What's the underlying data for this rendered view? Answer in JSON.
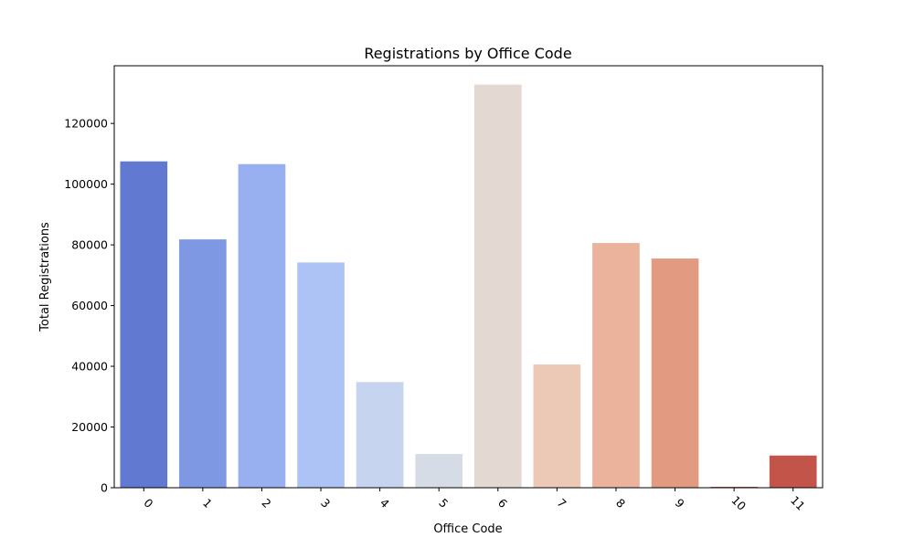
{
  "chart_data": {
    "type": "bar",
    "title": "Registrations by Office Code",
    "xlabel": "Office Code",
    "ylabel": "Total Registrations",
    "categories": [
      "0",
      "1",
      "2",
      "3",
      "4",
      "5",
      "6",
      "7",
      "8",
      "9",
      "10",
      "11"
    ],
    "values": [
      107500,
      81800,
      106600,
      74200,
      34800,
      11100,
      132800,
      40600,
      80600,
      75500,
      300,
      10600
    ],
    "colors": [
      "#6279d1",
      "#7f98e3",
      "#98b0ef",
      "#adc3f5",
      "#c6d4ef",
      "#d6dce5",
      "#e4d8d3",
      "#ecc8b6",
      "#ebb29c",
      "#e29a81",
      "#d0604f",
      "#c2544a"
    ],
    "ylim": [
      0,
      139000
    ],
    "yticks": [
      0,
      20000,
      40000,
      60000,
      80000,
      100000,
      120000
    ],
    "ytick_labels": [
      "0",
      "20000",
      "40000",
      "60000",
      "80000",
      "100000",
      "120000"
    ],
    "grid": false,
    "legend": "none"
  }
}
